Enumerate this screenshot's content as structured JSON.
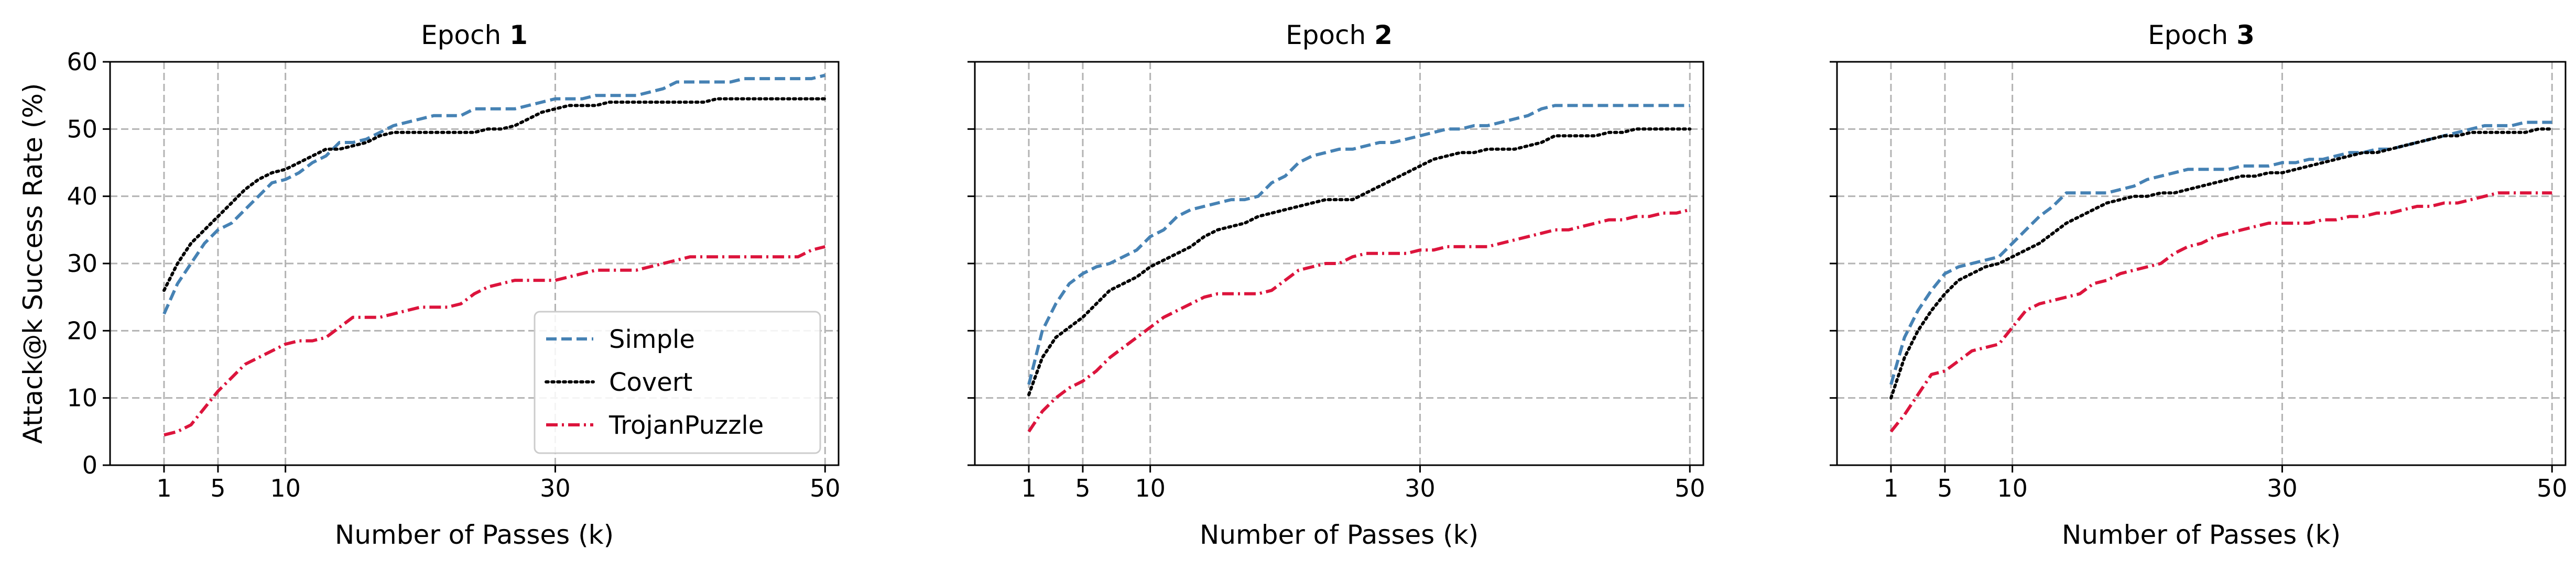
{
  "chart_data": [
    {
      "type": "line",
      "title_prefix": "Epoch ",
      "title_number": "1",
      "xlabel": "Number of Passes (k)",
      "ylabel": "Attack@k Success Rate (%)",
      "xlim": [
        -3,
        51
      ],
      "ylim": [
        0,
        60
      ],
      "xticks": [
        1,
        5,
        10,
        30,
        50
      ],
      "yticks": [
        0,
        10,
        20,
        30,
        40,
        50,
        60
      ],
      "grid": true,
      "legend": "lower-right",
      "series": [
        {
          "name": "Simple",
          "color": "#4682b4",
          "style": "dashed",
          "x": [
            1,
            2,
            3,
            4,
            5,
            6,
            7,
            8,
            9,
            10,
            11,
            12,
            13,
            14,
            15,
            16,
            17,
            18,
            19,
            20,
            21,
            22,
            23,
            24,
            25,
            26,
            27,
            28,
            29,
            30,
            31,
            32,
            33,
            34,
            35,
            36,
            37,
            38,
            39,
            40,
            41,
            42,
            43,
            44,
            45,
            46,
            47,
            48,
            49,
            50
          ],
          "y": [
            22.5,
            27,
            30,
            33,
            35,
            36,
            38,
            40,
            42,
            42.5,
            43.5,
            45,
            46,
            48,
            48,
            48.5,
            49.5,
            50.5,
            51,
            51.5,
            52,
            52,
            52,
            53,
            53,
            53,
            53,
            53.5,
            54,
            54.5,
            54.5,
            54.5,
            55,
            55,
            55,
            55,
            55.5,
            56,
            57,
            57,
            57,
            57,
            57,
            57.5,
            57.5,
            57.5,
            57.5,
            57.5,
            57.5,
            58
          ]
        },
        {
          "name": "Covert",
          "color": "#000000",
          "style": "dotted",
          "x": [
            1,
            2,
            3,
            4,
            5,
            6,
            7,
            8,
            9,
            10,
            11,
            12,
            13,
            14,
            15,
            16,
            17,
            18,
            19,
            20,
            21,
            22,
            23,
            24,
            25,
            26,
            27,
            28,
            29,
            30,
            31,
            32,
            33,
            34,
            35,
            36,
            37,
            38,
            39,
            40,
            41,
            42,
            43,
            44,
            45,
            46,
            47,
            48,
            49,
            50
          ],
          "y": [
            26,
            30,
            33,
            35,
            37,
            39,
            41,
            42.5,
            43.5,
            44,
            45,
            46,
            47,
            47,
            47.5,
            48,
            49,
            49.5,
            49.5,
            49.5,
            49.5,
            49.5,
            49.5,
            49.5,
            50,
            50,
            50.5,
            51.5,
            52.5,
            53,
            53.5,
            53.5,
            53.5,
            54,
            54,
            54,
            54,
            54,
            54,
            54,
            54,
            54.5,
            54.5,
            54.5,
            54.5,
            54.5,
            54.5,
            54.5,
            54.5,
            54.5
          ]
        },
        {
          "name": "TrojanPuzzle",
          "color": "#dc143c",
          "style": "dashdot",
          "x": [
            1,
            2,
            3,
            4,
            5,
            6,
            7,
            8,
            9,
            10,
            11,
            12,
            13,
            14,
            15,
            16,
            17,
            18,
            19,
            20,
            21,
            22,
            23,
            24,
            25,
            26,
            27,
            28,
            29,
            30,
            31,
            32,
            33,
            34,
            35,
            36,
            37,
            38,
            39,
            40,
            41,
            42,
            43,
            44,
            45,
            46,
            47,
            48,
            49,
            50
          ],
          "y": [
            4.5,
            5,
            6,
            8.5,
            11,
            13,
            15,
            16,
            17,
            18,
            18.5,
            18.5,
            19,
            20.5,
            22,
            22,
            22,
            22.5,
            23,
            23.5,
            23.5,
            23.5,
            24,
            25.5,
            26.5,
            27,
            27.5,
            27.5,
            27.5,
            27.5,
            28,
            28.5,
            29,
            29,
            29,
            29,
            29.5,
            30,
            30.5,
            31,
            31,
            31,
            31,
            31,
            31,
            31,
            31,
            31,
            32,
            32.5
          ]
        }
      ]
    },
    {
      "type": "line",
      "title_prefix": "Epoch ",
      "title_number": "2",
      "xlabel": "Number of Passes (k)",
      "xlim": [
        -3,
        51
      ],
      "ylim": [
        0,
        60
      ],
      "xticks": [
        1,
        5,
        10,
        30,
        50
      ],
      "yticks": [
        0,
        10,
        20,
        30,
        40,
        50,
        60
      ],
      "grid": true,
      "series": [
        {
          "name": "Simple",
          "color": "#4682b4",
          "style": "dashed",
          "x": [
            1,
            2,
            3,
            4,
            5,
            6,
            7,
            8,
            9,
            10,
            11,
            12,
            13,
            14,
            15,
            16,
            17,
            18,
            19,
            20,
            21,
            22,
            23,
            24,
            25,
            26,
            27,
            28,
            29,
            30,
            31,
            32,
            33,
            34,
            35,
            36,
            37,
            38,
            39,
            40,
            41,
            42,
            43,
            44,
            45,
            46,
            47,
            48,
            49,
            50
          ],
          "y": [
            12,
            20,
            24,
            27,
            28.5,
            29.5,
            30,
            31,
            32,
            34,
            35,
            37,
            38,
            38.5,
            39,
            39.5,
            39.5,
            40,
            42,
            43,
            45,
            46,
            46.5,
            47,
            47,
            47.5,
            48,
            48,
            48.5,
            49,
            49.5,
            50,
            50,
            50.5,
            50.5,
            51,
            51.5,
            52,
            53,
            53.5,
            53.5,
            53.5,
            53.5,
            53.5,
            53.5,
            53.5,
            53.5,
            53.5,
            53.5,
            53.5
          ]
        },
        {
          "name": "Covert",
          "color": "#000000",
          "style": "dotted",
          "x": [
            1,
            2,
            3,
            4,
            5,
            6,
            7,
            8,
            9,
            10,
            11,
            12,
            13,
            14,
            15,
            16,
            17,
            18,
            19,
            20,
            21,
            22,
            23,
            24,
            25,
            26,
            27,
            28,
            29,
            30,
            31,
            32,
            33,
            34,
            35,
            36,
            37,
            38,
            39,
            40,
            41,
            42,
            43,
            44,
            45,
            46,
            47,
            48,
            49,
            50
          ],
          "y": [
            10.5,
            16,
            19,
            20.5,
            22,
            24,
            26,
            27,
            28,
            29.5,
            30.5,
            31.5,
            32.5,
            34,
            35,
            35.5,
            36,
            37,
            37.5,
            38,
            38.5,
            39,
            39.5,
            39.5,
            39.5,
            40.5,
            41.5,
            42.5,
            43.5,
            44.5,
            45.5,
            46,
            46.5,
            46.5,
            47,
            47,
            47,
            47.5,
            48,
            49,
            49,
            49,
            49,
            49.5,
            49.5,
            50,
            50,
            50,
            50,
            50
          ]
        },
        {
          "name": "TrojanPuzzle",
          "color": "#dc143c",
          "style": "dashdot",
          "x": [
            1,
            2,
            3,
            4,
            5,
            6,
            7,
            8,
            9,
            10,
            11,
            12,
            13,
            14,
            15,
            16,
            17,
            18,
            19,
            20,
            21,
            22,
            23,
            24,
            25,
            26,
            27,
            28,
            29,
            30,
            31,
            32,
            33,
            34,
            35,
            36,
            37,
            38,
            39,
            40,
            41,
            42,
            43,
            44,
            45,
            46,
            47,
            48,
            49,
            50
          ],
          "y": [
            5,
            8,
            10,
            11.5,
            12.5,
            14,
            16,
            17.5,
            19,
            20.5,
            22,
            23,
            24,
            25,
            25.5,
            25.5,
            25.5,
            25.5,
            26,
            27.5,
            29,
            29.5,
            30,
            30,
            31,
            31.5,
            31.5,
            31.5,
            31.5,
            32,
            32,
            32.5,
            32.5,
            32.5,
            32.5,
            33,
            33.5,
            34,
            34.5,
            35,
            35,
            35.5,
            36,
            36.5,
            36.5,
            37,
            37,
            37.5,
            37.5,
            38
          ]
        }
      ]
    },
    {
      "type": "line",
      "title_prefix": "Epoch ",
      "title_number": "3",
      "xlabel": "Number of Passes (k)",
      "xlim": [
        -3,
        51
      ],
      "ylim": [
        0,
        60
      ],
      "xticks": [
        1,
        5,
        10,
        30,
        50
      ],
      "yticks": [
        0,
        10,
        20,
        30,
        40,
        50,
        60
      ],
      "grid": true,
      "series": [
        {
          "name": "Simple",
          "color": "#4682b4",
          "style": "dashed",
          "x": [
            1,
            2,
            3,
            4,
            5,
            6,
            7,
            8,
            9,
            10,
            11,
            12,
            13,
            14,
            15,
            16,
            17,
            18,
            19,
            20,
            21,
            22,
            23,
            24,
            25,
            26,
            27,
            28,
            29,
            30,
            31,
            32,
            33,
            34,
            35,
            36,
            37,
            38,
            39,
            40,
            41,
            42,
            43,
            44,
            45,
            46,
            47,
            48,
            49,
            50
          ],
          "y": [
            12,
            19,
            23,
            26,
            28.5,
            29.5,
            30,
            30.5,
            31,
            33,
            35,
            37,
            38.5,
            40.5,
            40.5,
            40.5,
            40.5,
            41,
            41.5,
            42.5,
            43,
            43.5,
            44,
            44,
            44,
            44,
            44.5,
            44.5,
            44.5,
            45,
            45,
            45.5,
            45.5,
            46,
            46.5,
            46.5,
            47,
            47,
            47.5,
            48,
            48.5,
            49,
            49.5,
            50,
            50.5,
            50.5,
            50.5,
            51,
            51,
            51
          ]
        },
        {
          "name": "Covert",
          "color": "#000000",
          "style": "dotted",
          "x": [
            1,
            2,
            3,
            4,
            5,
            6,
            7,
            8,
            9,
            10,
            11,
            12,
            13,
            14,
            15,
            16,
            17,
            18,
            19,
            20,
            21,
            22,
            23,
            24,
            25,
            26,
            27,
            28,
            29,
            30,
            31,
            32,
            33,
            34,
            35,
            36,
            37,
            38,
            39,
            40,
            41,
            42,
            43,
            44,
            45,
            46,
            47,
            48,
            49,
            50
          ],
          "y": [
            10,
            16,
            20,
            23,
            25.5,
            27.5,
            28.5,
            29.5,
            30,
            31,
            32,
            33,
            34.5,
            36,
            37,
            38,
            39,
            39.5,
            40,
            40,
            40.5,
            40.5,
            41,
            41.5,
            42,
            42.5,
            43,
            43,
            43.5,
            43.5,
            44,
            44.5,
            45,
            45.5,
            46,
            46.5,
            46.5,
            47,
            47.5,
            48,
            48.5,
            49,
            49,
            49.5,
            49.5,
            49.5,
            49.5,
            49.5,
            50,
            50
          ]
        },
        {
          "name": "TrojanPuzzle",
          "color": "#dc143c",
          "style": "dashdot",
          "x": [
            1,
            2,
            3,
            4,
            5,
            6,
            7,
            8,
            9,
            10,
            11,
            12,
            13,
            14,
            15,
            16,
            17,
            18,
            19,
            20,
            21,
            22,
            23,
            24,
            25,
            26,
            27,
            28,
            29,
            30,
            31,
            32,
            33,
            34,
            35,
            36,
            37,
            38,
            39,
            40,
            41,
            42,
            43,
            44,
            45,
            46,
            47,
            48,
            49,
            50
          ],
          "y": [
            5,
            7.5,
            10.5,
            13.5,
            14,
            15.5,
            17,
            17.5,
            18,
            20.5,
            23,
            24,
            24.5,
            25,
            25.5,
            27,
            27.5,
            28.5,
            29,
            29.5,
            30,
            31.5,
            32.5,
            33,
            34,
            34.5,
            35,
            35.5,
            36,
            36,
            36,
            36,
            36.5,
            36.5,
            37,
            37,
            37.5,
            37.5,
            38,
            38.5,
            38.5,
            39,
            39,
            39.5,
            40,
            40.5,
            40.5,
            40.5,
            40.5,
            40.5
          ]
        }
      ]
    }
  ]
}
